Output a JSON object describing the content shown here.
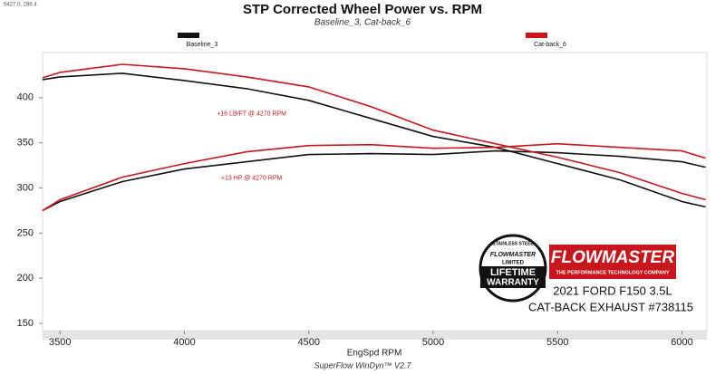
{
  "chart_data": {
    "type": "line",
    "readout": "5427.0, 286.4",
    "title": "STP Corrected Wheel Power vs. RPM",
    "subtitle": "Baseline_3, Cat-back_6",
    "x_label": "EngSpd  RPM",
    "footer": "SuperFlow WinDyn™ V2.7",
    "x": [
      3430,
      3500,
      3750,
      4000,
      4250,
      4500,
      4750,
      5000,
      5250,
      5500,
      5750,
      6000,
      6095
    ],
    "xlim": [
      3430,
      6100
    ],
    "xticks": [
      3500,
      4000,
      4500,
      5000,
      5500,
      6000
    ],
    "ylim": [
      142,
      450
    ],
    "yticks": [
      150,
      200,
      250,
      300,
      350,
      400
    ],
    "series": [
      {
        "name": "Baseline_3",
        "color": "#111111",
        "torque": [
          420,
          423,
          427,
          419,
          410,
          397,
          377,
          357,
          345,
          327,
          309,
          285,
          279
        ],
        "power": [
          275,
          285,
          307,
          321,
          329,
          337,
          338,
          337,
          341,
          339,
          335,
          329,
          323
        ]
      },
      {
        "name": "Cat-back_6",
        "color": "#c8161d",
        "torque": [
          422,
          428,
          437,
          432,
          423,
          412,
          390,
          364,
          349,
          334,
          317,
          294,
          287
        ],
        "power": [
          275,
          287,
          312,
          327,
          340,
          347,
          348,
          344,
          345,
          349,
          345,
          341,
          333
        ]
      }
    ],
    "annotations": [
      {
        "text": "+16 LB/FT @ 4270 RPM",
        "x": 4270,
        "y": 382
      },
      {
        "text": "+13 HP @ 4270 RPM",
        "x": 4270,
        "y": 311
      }
    ],
    "badge": {
      "top": "STAINLESS STEEL",
      "brand": "FLOWMASTER",
      "middle": "LIMITED",
      "line1": "LIFETIME",
      "line2": "WARRANTY"
    },
    "logo": {
      "brand": "FLOWMASTER",
      "tagline": "THE PERFORMANCE TECHNOLOGY COMPANY"
    },
    "vehicle": [
      "2021 FORD F150 3.5L",
      "CAT-BACK EXHAUST #738115"
    ]
  }
}
